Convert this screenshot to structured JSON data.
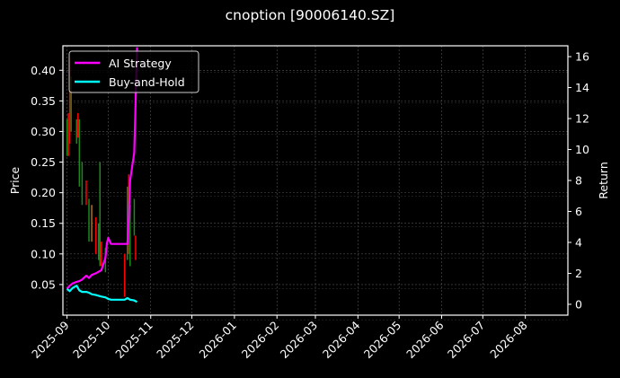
{
  "chart_data": {
    "type": "line",
    "title": "cnoption [90006140.SZ]",
    "xlabel": "",
    "ylabel": "Price",
    "ylabel_right": "Return",
    "grid": true,
    "legend_position": "upper left",
    "x_ticks": [
      "2025-09",
      "2025-10",
      "2025-11",
      "2025-12",
      "2026-01",
      "2026-02",
      "2026-03",
      "2026-04",
      "2026-05",
      "2026-06",
      "2026-07",
      "2026-08"
    ],
    "y_left_ticks": [
      0.05,
      0.1,
      0.15,
      0.2,
      0.25,
      0.3,
      0.35,
      0.4
    ],
    "y_left_tick_labels": [
      "0.05",
      "0.10",
      "0.15",
      "0.20",
      "0.25",
      "0.30",
      "0.35",
      "0.40"
    ],
    "y_left_range": [
      0.0,
      0.44
    ],
    "y_right_ticks": [
      0,
      2,
      4,
      6,
      8,
      10,
      12,
      14,
      16
    ],
    "y_right_range": [
      -0.7,
      16.7
    ],
    "x_range": [
      "2025-08-29",
      "2026-09-01"
    ],
    "series": [
      {
        "name": "AI Strategy",
        "axis": "right",
        "color": "#ff00ff",
        "x": [
          "2025-09-01",
          "2025-09-03",
          "2025-09-05",
          "2025-09-08",
          "2025-09-10",
          "2025-09-12",
          "2025-09-15",
          "2025-09-17",
          "2025-09-19",
          "2025-09-22",
          "2025-09-24",
          "2025-09-26",
          "2025-09-29",
          "2025-09-30",
          "2025-10-01",
          "2025-10-03",
          "2025-10-06",
          "2025-10-09",
          "2025-10-13",
          "2025-10-15",
          "2025-10-16",
          "2025-10-17",
          "2025-10-20",
          "2025-10-21",
          "2025-10-22"
        ],
        "values": [
          1.0,
          1.2,
          1.35,
          1.45,
          1.5,
          1.6,
          1.85,
          1.7,
          1.9,
          2.0,
          2.1,
          2.2,
          3.0,
          3.9,
          4.3,
          3.9,
          3.9,
          3.9,
          3.9,
          3.9,
          5.6,
          8.0,
          9.8,
          13.0,
          16.6
        ]
      },
      {
        "name": "Buy-and-Hold",
        "axis": "right",
        "color": "#00ffff",
        "x": [
          "2025-09-01",
          "2025-09-03",
          "2025-09-05",
          "2025-09-08",
          "2025-09-10",
          "2025-09-12",
          "2025-09-15",
          "2025-09-17",
          "2025-09-19",
          "2025-09-22",
          "2025-09-24",
          "2025-09-26",
          "2025-09-29",
          "2025-10-01",
          "2025-10-03",
          "2025-10-06",
          "2025-10-09",
          "2025-10-13",
          "2025-10-15",
          "2025-10-17",
          "2025-10-20",
          "2025-10-22"
        ],
        "values": [
          1.0,
          0.85,
          1.05,
          1.2,
          0.9,
          0.8,
          0.8,
          0.75,
          0.65,
          0.6,
          0.55,
          0.5,
          0.45,
          0.35,
          0.3,
          0.3,
          0.3,
          0.3,
          0.4,
          0.3,
          0.25,
          0.15
        ]
      }
    ],
    "candles": {
      "axis": "left",
      "up_color": "#008000",
      "down_color": "#ff0000",
      "bars": [
        {
          "date": "2025-09-01",
          "low": 0.26,
          "high": 0.32,
          "color": "green"
        },
        {
          "date": "2025-09-02",
          "low": 0.26,
          "high": 0.33,
          "color": "red"
        },
        {
          "date": "2025-09-03",
          "low": 0.28,
          "high": 0.42,
          "color": "red"
        },
        {
          "date": "2025-09-04",
          "low": 0.3,
          "high": 0.39,
          "color": "green"
        },
        {
          "date": "2025-09-08",
          "low": 0.28,
          "high": 0.32,
          "color": "green"
        },
        {
          "date": "2025-09-09",
          "low": 0.29,
          "high": 0.33,
          "color": "red"
        },
        {
          "date": "2025-09-10",
          "low": 0.21,
          "high": 0.32,
          "color": "green"
        },
        {
          "date": "2025-09-12",
          "low": 0.18,
          "high": 0.25,
          "color": "green"
        },
        {
          "date": "2025-09-15",
          "low": 0.18,
          "high": 0.22,
          "color": "red"
        },
        {
          "date": "2025-09-17",
          "low": 0.12,
          "high": 0.19,
          "color": "green"
        },
        {
          "date": "2025-09-19",
          "low": 0.12,
          "high": 0.18,
          "color": "orange"
        },
        {
          "date": "2025-09-22",
          "low": 0.1,
          "high": 0.16,
          "color": "red"
        },
        {
          "date": "2025-09-24",
          "low": 0.09,
          "high": 0.15,
          "color": "green"
        },
        {
          "date": "2025-09-25",
          "low": 0.08,
          "high": 0.25,
          "color": "green"
        },
        {
          "date": "2025-09-26",
          "low": 0.08,
          "high": 0.12,
          "color": "red"
        },
        {
          "date": "2025-09-29",
          "low": 0.07,
          "high": 0.11,
          "color": "green"
        },
        {
          "date": "2025-10-13",
          "low": 0.03,
          "high": 0.1,
          "color": "red"
        },
        {
          "date": "2025-10-15",
          "low": 0.09,
          "high": 0.21,
          "color": "green"
        },
        {
          "date": "2025-10-16",
          "low": 0.1,
          "high": 0.23,
          "color": "red"
        },
        {
          "date": "2025-10-17",
          "low": 0.08,
          "high": 0.18,
          "color": "green"
        },
        {
          "date": "2025-10-20",
          "low": 0.13,
          "high": 0.19,
          "color": "green"
        },
        {
          "date": "2025-10-21",
          "low": 0.09,
          "high": 0.13,
          "color": "red"
        }
      ]
    }
  },
  "legend": [
    {
      "label": "AI Strategy",
      "color": "#ff00ff"
    },
    {
      "label": "Buy-and-Hold",
      "color": "#00ffff"
    }
  ]
}
